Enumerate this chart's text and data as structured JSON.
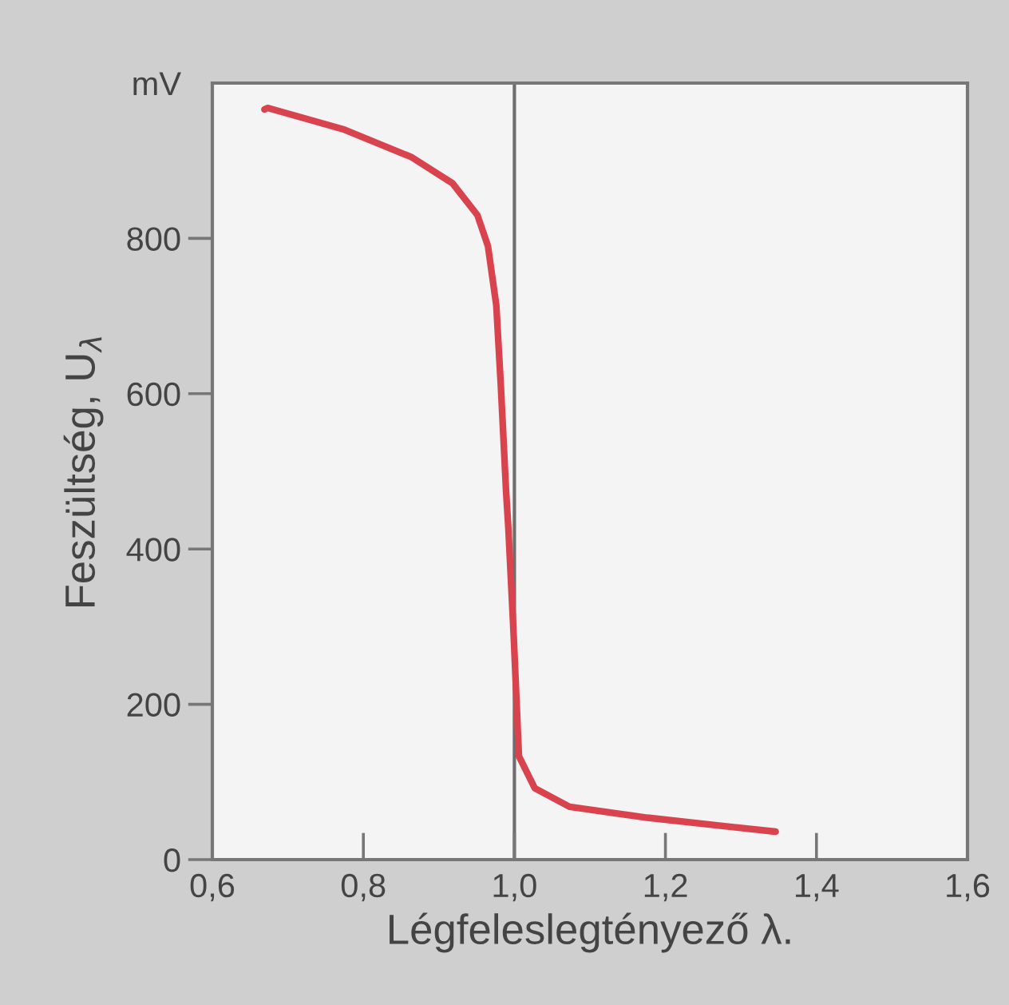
{
  "chart_data": {
    "type": "line",
    "xlabel": "Légfeleslegtényező λ.",
    "ylabel": "Feszültség, U$_{λ}$",
    "series": [
      {
        "color": "#d9434e",
        "x": [
          0.669,
          0.673,
          0.775,
          0.863,
          0.918,
          0.951,
          0.965,
          0.976,
          0.982,
          0.989,
          0.992,
          0.999,
          1.006,
          1.027,
          1.073,
          1.176,
          1.278,
          1.346
        ],
        "values": [
          966,
          968,
          940,
          905,
          871,
          830,
          790,
          714,
          611,
          474,
          427,
          290,
          133,
          92,
          68,
          54,
          43,
          36
        ]
      }
    ],
    "xlim": [
      0.6,
      1.6
    ],
    "xticks": [
      {
        "value": 0.6,
        "label": "0,6"
      },
      {
        "value": 0.8,
        "label": "0,8"
      },
      {
        "value": 1.0,
        "label": "1,0"
      },
      {
        "value": 1.2,
        "label": "1,2"
      },
      {
        "value": 1.4,
        "label": "1,4"
      },
      {
        "value": 1.6,
        "label": "1,6"
      }
    ],
    "ylim": [
      0,
      1000
    ],
    "yticks": [
      0,
      200,
      400,
      600,
      800,
      {
        "value": 1000,
        "label": "mV"
      }
    ],
    "ref_lines": [
      {
        "axis": "x",
        "value": 1.0,
        "color": "#6e6e6e"
      }
    ],
    "grid": false,
    "marker": "none",
    "line_style": "solid"
  }
}
